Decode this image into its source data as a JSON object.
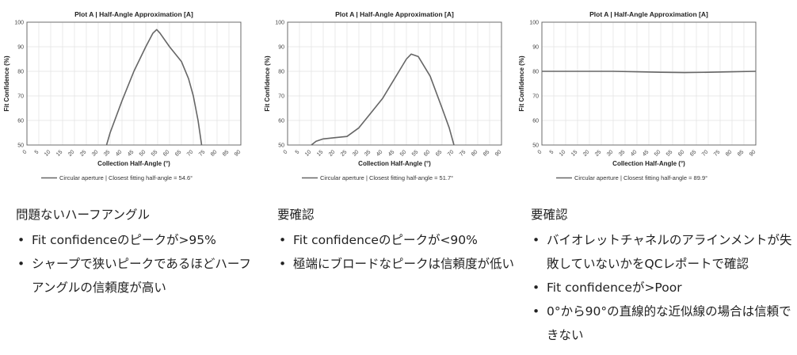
{
  "chart_data": [
    {
      "type": "line",
      "title": "Plot A | Half-Angle Approximation [A]",
      "xlabel": "Collection Half-Angle (°)",
      "ylabel": "Fit Confidence (%)",
      "xlim": [
        0,
        90
      ],
      "ylim": [
        50,
        100
      ],
      "xticks": [
        "0",
        "5",
        "10",
        "15",
        "20",
        "25",
        "30",
        "35",
        "40",
        "45",
        "50",
        "55",
        "60",
        "65",
        "70",
        "75",
        "80",
        "85",
        "90"
      ],
      "yticks": [
        "50",
        "60",
        "70",
        "80",
        "90",
        "100"
      ],
      "grid": true,
      "legend_position": "bottom",
      "series": [
        {
          "name": "Circular aperture | Closest fitting half-angle = 54.6°",
          "color": "#666666",
          "x": [
            33.5,
            35,
            40,
            45,
            50,
            53,
            54.6,
            56,
            60,
            65,
            68,
            70,
            72,
            73.5
          ],
          "y": [
            50,
            55,
            68,
            80,
            90,
            95.5,
            97,
            95.5,
            90,
            84,
            77,
            70,
            60,
            50
          ]
        }
      ]
    },
    {
      "type": "line",
      "title": "Plot A | Half-Angle Approximation [A]",
      "xlabel": "Collection Half-Angle (°)",
      "ylabel": "Fit Confidence (%)",
      "xlim": [
        0,
        90
      ],
      "ylim": [
        50,
        100
      ],
      "xticks": [
        "0",
        "5",
        "10",
        "15",
        "20",
        "25",
        "30",
        "35",
        "40",
        "45",
        "50",
        "55",
        "60",
        "65",
        "70",
        "75",
        "80",
        "85",
        "90"
      ],
      "yticks": [
        "50",
        "60",
        "70",
        "80",
        "90",
        "100"
      ],
      "grid": true,
      "legend_position": "bottom",
      "series": [
        {
          "name": "Circular aperture | Closest fitting half-angle = 51.7°",
          "color": "#666666",
          "x": [
            10,
            12,
            15,
            20,
            25,
            30,
            35,
            40,
            45,
            50,
            52,
            55,
            60,
            65,
            68,
            70
          ],
          "y": [
            50,
            51.5,
            52.5,
            53,
            53.5,
            57,
            63,
            69,
            77,
            85,
            87,
            86,
            78,
            65,
            57,
            50
          ]
        }
      ]
    },
    {
      "type": "line",
      "title": "Plot A | Half-Angle Approximation [A]",
      "xlabel": "Collection Half-Angle (°)",
      "ylabel": "Fit Confidence (%)",
      "xlim": [
        0,
        90
      ],
      "ylim": [
        50,
        100
      ],
      "xticks": [
        "0",
        "5",
        "10",
        "15",
        "20",
        "25",
        "30",
        "35",
        "40",
        "45",
        "50",
        "55",
        "60",
        "65",
        "70",
        "75",
        "80",
        "85",
        "90"
      ],
      "yticks": [
        "50",
        "60",
        "70",
        "80",
        "90",
        "100"
      ],
      "grid": true,
      "legend_position": "bottom",
      "series": [
        {
          "name": "Circular aperture | Closest fitting half-angle = 89.9°",
          "color": "#666666",
          "x": [
            0,
            10,
            20,
            30,
            40,
            50,
            60,
            70,
            80,
            90
          ],
          "y": [
            80,
            80,
            80,
            80,
            79.8,
            79.6,
            79.5,
            79.6,
            79.8,
            80
          ]
        }
      ]
    }
  ],
  "descriptions": [
    {
      "heading": "問題ないハーフアングル",
      "bullets": [
        "Fit confidenceのピークが>95%",
        "シャープで狭いピークであるほどハーフアングルの信頼度が高い"
      ]
    },
    {
      "heading": "要確認",
      "bullets": [
        "Fit confidenceのピークが<90%",
        "極端にブロードなピークは信頼度が低い"
      ]
    },
    {
      "heading": "要確認",
      "bullets": [
        "バイオレットチャネルのアラインメントが失敗していないかをQCレポートで確認",
        "Fit confidenceが>Poor",
        "0°から90°の直線的な近似線の場合は信頼できない"
      ]
    }
  ]
}
